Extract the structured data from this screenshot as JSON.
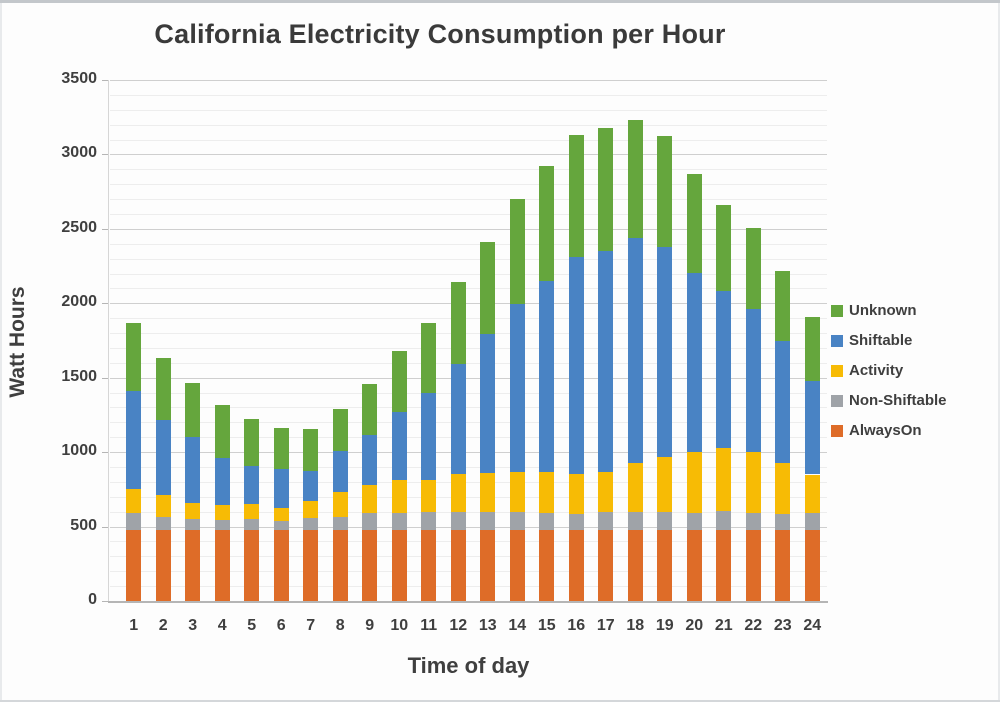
{
  "title": "California Electricity Consumption per Hour",
  "chart_data": {
    "type": "bar",
    "stacked": true,
    "title": "California Electricity Consumption per Hour",
    "xlabel": "Time of day",
    "ylabel": "Watt Hours",
    "categories": [
      "1",
      "2",
      "3",
      "4",
      "5",
      "6",
      "7",
      "8",
      "9",
      "10",
      "11",
      "12",
      "13",
      "14",
      "15",
      "16",
      "17",
      "18",
      "19",
      "20",
      "21",
      "22",
      "23",
      "24"
    ],
    "ylim": [
      0,
      3500
    ],
    "ytick_labels": [
      "0",
      "500",
      "1000",
      "1500",
      "2000",
      "2500",
      "3000",
      "3500"
    ],
    "ytick_step": 500,
    "minor_grid_step": 100,
    "grid": true,
    "series": [
      {
        "name": "AlwaysOn",
        "color": "#de6c28",
        "values": [
          480,
          480,
          480,
          480,
          480,
          480,
          480,
          480,
          480,
          480,
          480,
          480,
          480,
          480,
          480,
          480,
          480,
          480,
          480,
          480,
          480,
          480,
          480,
          480
        ]
      },
      {
        "name": "Non-Shiftable",
        "color": "#9fa3a8",
        "values": [
          110,
          85,
          70,
          65,
          70,
          60,
          80,
          85,
          110,
          110,
          120,
          120,
          120,
          120,
          110,
          105,
          120,
          120,
          120,
          110,
          125,
          110,
          105,
          110
        ]
      },
      {
        "name": "Activity",
        "color": "#f7bb05",
        "values": [
          160,
          150,
          110,
          100,
          105,
          85,
          115,
          165,
          190,
          225,
          210,
          250,
          260,
          265,
          275,
          270,
          270,
          325,
          370,
          410,
          425,
          410,
          345,
          260
        ]
      },
      {
        "name": "Shiftable",
        "color": "#4983c4",
        "values": [
          660,
          500,
          445,
          315,
          255,
          260,
          200,
          280,
          335,
          455,
          585,
          740,
          935,
          1130,
          1285,
          1455,
          1480,
          1515,
          1410,
          1205,
          1050,
          965,
          815,
          630
        ]
      },
      {
        "name": "Unknown",
        "color": "#65a63d",
        "values": [
          460,
          415,
          360,
          355,
          310,
          280,
          280,
          280,
          345,
          410,
          475,
          550,
          620,
          705,
          770,
          820,
          830,
          790,
          745,
          665,
          580,
          540,
          475,
          425
        ]
      }
    ],
    "legend": {
      "position": "right",
      "order": [
        "Unknown",
        "Shiftable",
        "Activity",
        "Non-Shiftable",
        "AlwaysOn"
      ]
    }
  }
}
